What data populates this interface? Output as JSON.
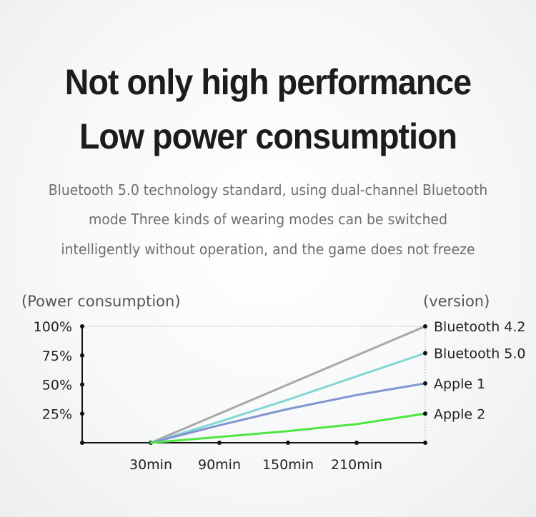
{
  "headline": {
    "line1": "Not only high performance",
    "line2": "Low power consumption"
  },
  "description": {
    "line1": "Bluetooth 5.0 technology standard, using dual-channel Bluetooth",
    "line2": "mode Three kinds of wearing modes can be switched",
    "line3": "intelligently without operation, and the game does not freeze"
  },
  "chart_data": {
    "type": "line",
    "ylabel": "(Power consumption)",
    "legend_title": "(version)",
    "legend_placement": "right",
    "grid": false,
    "ylim": [
      0,
      100
    ],
    "y_ticks": [
      "100%",
      "75%",
      "50%",
      "25%"
    ],
    "y_tick_values": [
      100,
      75,
      50,
      25
    ],
    "x_ticks": [
      "30min",
      "90min",
      "150min",
      "210min"
    ],
    "x": [
      30,
      90,
      150,
      210,
      270
    ],
    "xlim": [
      -30,
      270
    ],
    "series": [
      {
        "name": "Bluetooth 4.2",
        "color": "#a8a8a8",
        "values": [
          0,
          25,
          50,
          75,
          100
        ]
      },
      {
        "name": "Bluetooth 5.0",
        "color": "#84d6d2",
        "values": [
          0,
          18,
          37,
          57,
          77
        ]
      },
      {
        "name": "Apple 1",
        "color": "#8095d0",
        "values": [
          0,
          15,
          29,
          41,
          51
        ]
      },
      {
        "name": "Apple 2",
        "color": "#4ee642",
        "values": [
          0,
          5,
          10,
          16,
          25
        ]
      }
    ]
  }
}
